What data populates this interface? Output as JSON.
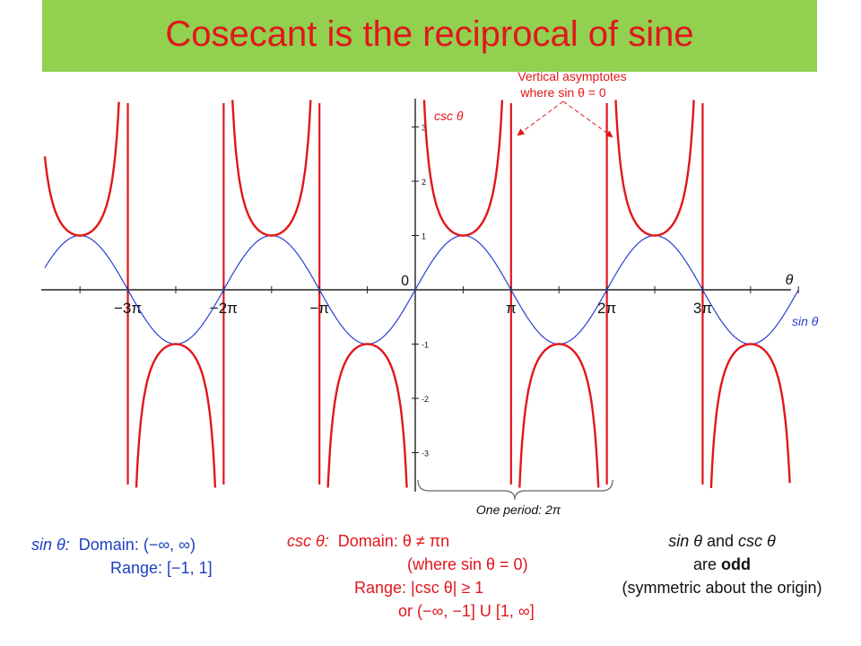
{
  "title": "Cosecant is the reciprocal of sine",
  "colors": {
    "csc": "#e2161b",
    "sin": "#2a3fd0",
    "title_bg": "#92d050",
    "axis": "#222222",
    "annotation": "#e2161b"
  },
  "chart_data": {
    "type": "line",
    "xlabel": "θ",
    "x_range_radians": [
      -3.77,
      4.4
    ],
    "ylim": [
      -3.5,
      3.5
    ],
    "x_ticks": [
      {
        "value": -3.14159,
        "label": "−3π"
      },
      {
        "value": -2.0944,
        "label": "−2π"
      },
      {
        "value": -1.0472,
        "label": "−π"
      },
      {
        "value": 1.0472,
        "label": "π"
      },
      {
        "value": 2.0944,
        "label": "2π"
      },
      {
        "value": 3.14159,
        "label": "3π"
      }
    ],
    "origin_label": "0",
    "y_ticks": [
      {
        "value": 3,
        "label": "3"
      },
      {
        "value": 2,
        "label": "2"
      },
      {
        "value": 1,
        "label": "1"
      },
      {
        "value": -1,
        "label": "-1"
      },
      {
        "value": -2,
        "label": "-2"
      },
      {
        "value": -3,
        "label": "-3"
      }
    ],
    "series": [
      {
        "name": "csc θ",
        "function": "csc(3x)"
      },
      {
        "name": "sin θ",
        "function": "sin(3x)"
      }
    ],
    "asymptote_x": [
      -3.14159,
      -2.0944,
      -1.0472,
      1.0472,
      2.0944,
      3.14159
    ],
    "annotations": {
      "asymptote_line1": "Vertical asymptotes",
      "asymptote_line2": "where sin θ = 0",
      "period": "One period: 2π"
    },
    "grid": false
  },
  "sin_info": {
    "label": "sin θ:",
    "domain": "Domain: (−∞, ∞)",
    "range": "Range: [−1, 1]"
  },
  "csc_info": {
    "label": "csc θ:",
    "domain": "Domain: θ ≠ πn",
    "domain_note": "(where sin θ = 0)",
    "range": "Range: |csc θ| ≥ 1",
    "range_alt": "or (−∞, −1] U [1, ∞]"
  },
  "odd_info": {
    "line1_pre": "sin θ",
    "line1_mid": " and ",
    "line1_post": "csc θ",
    "line2_pre": "are ",
    "line2_bold": "odd",
    "line3": "(symmetric about the  origin)"
  }
}
